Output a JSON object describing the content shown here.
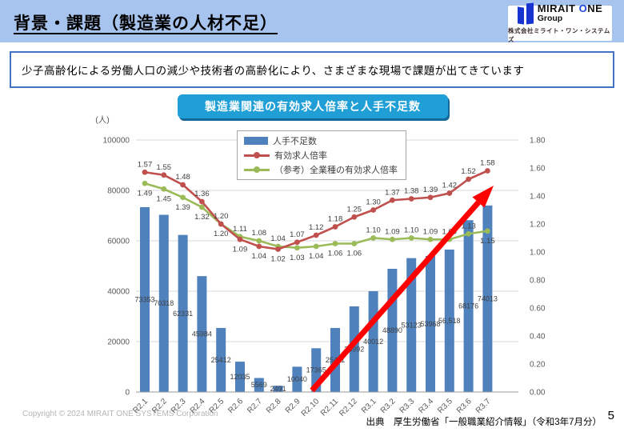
{
  "header": {
    "title": "背景・課題（製造業の人材不足）"
  },
  "logo": {
    "brand_prefix": "MIRAIT ",
    "brand_o": "O",
    "brand_suffix": "NE",
    "group": "Group",
    "company": "株式会社ミライト・ワン・システムズ",
    "brand_blue": "#1e46e0"
  },
  "message": {
    "text": "少子高齢化による労働人口の減少や技術者の高齢化により、さまざまな現場で課題が出てきています"
  },
  "chart_badge": {
    "title": "製造業関連の有効求人倍率と人手不足数"
  },
  "chart_data": {
    "type": "combo (bar + line)",
    "categories": [
      "R2.1",
      "R2.2",
      "R2.3",
      "R2.4",
      "R2.5",
      "R2.6",
      "R2.7",
      "R2.8",
      "R2.9",
      "R2.10",
      "R2.11",
      "R2.12",
      "R3.1",
      "R3.2",
      "R3.3",
      "R3.4",
      "R3.5",
      "R3.6",
      "R3.7"
    ],
    "series": [
      {
        "name": "人手不足数",
        "type": "bar",
        "axis": "left",
        "color": "#4F81BD",
        "values": [
          73353,
          70318,
          62331,
          45984,
          25412,
          12035,
          5569,
          2491,
          10040,
          17365,
          25411,
          33992,
          40012,
          48890,
          53123,
          53968,
          56518,
          68176,
          74013
        ],
        "labels": [
          "73353",
          "70318",
          "62331",
          "45984",
          "25412",
          "12035",
          "5569",
          "2491",
          "10040",
          "17365",
          "25411",
          "33992",
          "40012",
          "48890",
          "53123",
          "53968",
          "56,518",
          "68176",
          "74013"
        ]
      },
      {
        "name": "有効求人倍率",
        "type": "line",
        "axis": "right",
        "color": "#C0504D",
        "values": [
          1.57,
          1.55,
          1.48,
          1.36,
          1.2,
          1.09,
          1.04,
          1.02,
          1.07,
          1.12,
          1.18,
          1.25,
          1.3,
          1.37,
          1.38,
          1.39,
          1.42,
          1.52,
          1.58
        ],
        "labels": [
          "1.57",
          "1.55",
          "1.48",
          "1.36",
          "1.20",
          "1.09",
          "1.04",
          "1.02",
          "1.07",
          "1.12",
          "1.18",
          "1.25",
          "1.30",
          "1.37",
          "1.38",
          "1.39",
          "1.42",
          "1.52",
          "1.58"
        ],
        "label_side": [
          "above",
          "above",
          "above",
          "above",
          "above",
          "below",
          "below",
          "below",
          "above",
          "above",
          "above",
          "above",
          "above",
          "above",
          "above",
          "above",
          "above",
          "above",
          "above"
        ]
      },
      {
        "name": "（参考）全業種の有効求人倍率",
        "type": "line",
        "axis": "right",
        "color": "#9BBB59",
        "values": [
          1.49,
          1.45,
          1.39,
          1.32,
          1.2,
          1.11,
          1.08,
          1.04,
          1.03,
          1.04,
          1.06,
          1.06,
          1.1,
          1.09,
          1.1,
          1.09,
          1.09,
          1.13,
          1.15
        ],
        "labels": [
          "1.49",
          "1.45",
          "1.39",
          "1.32",
          "1.20",
          "1.11",
          "1.08",
          "1.04",
          "1.03",
          "1.04",
          "1.06",
          "1.06",
          "1.10",
          "1.09",
          "1.10",
          "1.09",
          "1.09",
          "1.13",
          "1.15"
        ],
        "label_side": [
          "below",
          "below",
          "below",
          "below",
          "below",
          "above",
          "above",
          "above",
          "below",
          "below",
          "below",
          "below",
          "above",
          "above",
          "above",
          "above",
          "above",
          "above",
          "below"
        ]
      }
    ],
    "left_axis": {
      "title": "(人)",
      "min": 0,
      "max": 100000,
      "step": 20000,
      "tick_labels": [
        "100000",
        "80000",
        "60000",
        "40000",
        "20000",
        "0"
      ]
    },
    "right_axis": {
      "min": 0.0,
      "max": 1.8,
      "step": 0.2,
      "tick_labels": [
        "1.80",
        "1.60",
        "1.40",
        "1.20",
        "1.00",
        "0.80",
        "0.60",
        "0.40",
        "0.20",
        "0.00"
      ]
    },
    "grid": "horizontal gridlines every 20000 (left axis)",
    "legend_position": "top-center inside plot",
    "annotations": [
      {
        "type": "arrow",
        "direction": "up-right",
        "color": "#FF0000"
      }
    ]
  },
  "footer": {
    "copyright": "Copyright © 2024 MIRAIT ONE SYSTEMS Corporation",
    "source": "出典　厚生労働省「一般職業紹介情報」（令和3年7月分）",
    "page": "5"
  }
}
